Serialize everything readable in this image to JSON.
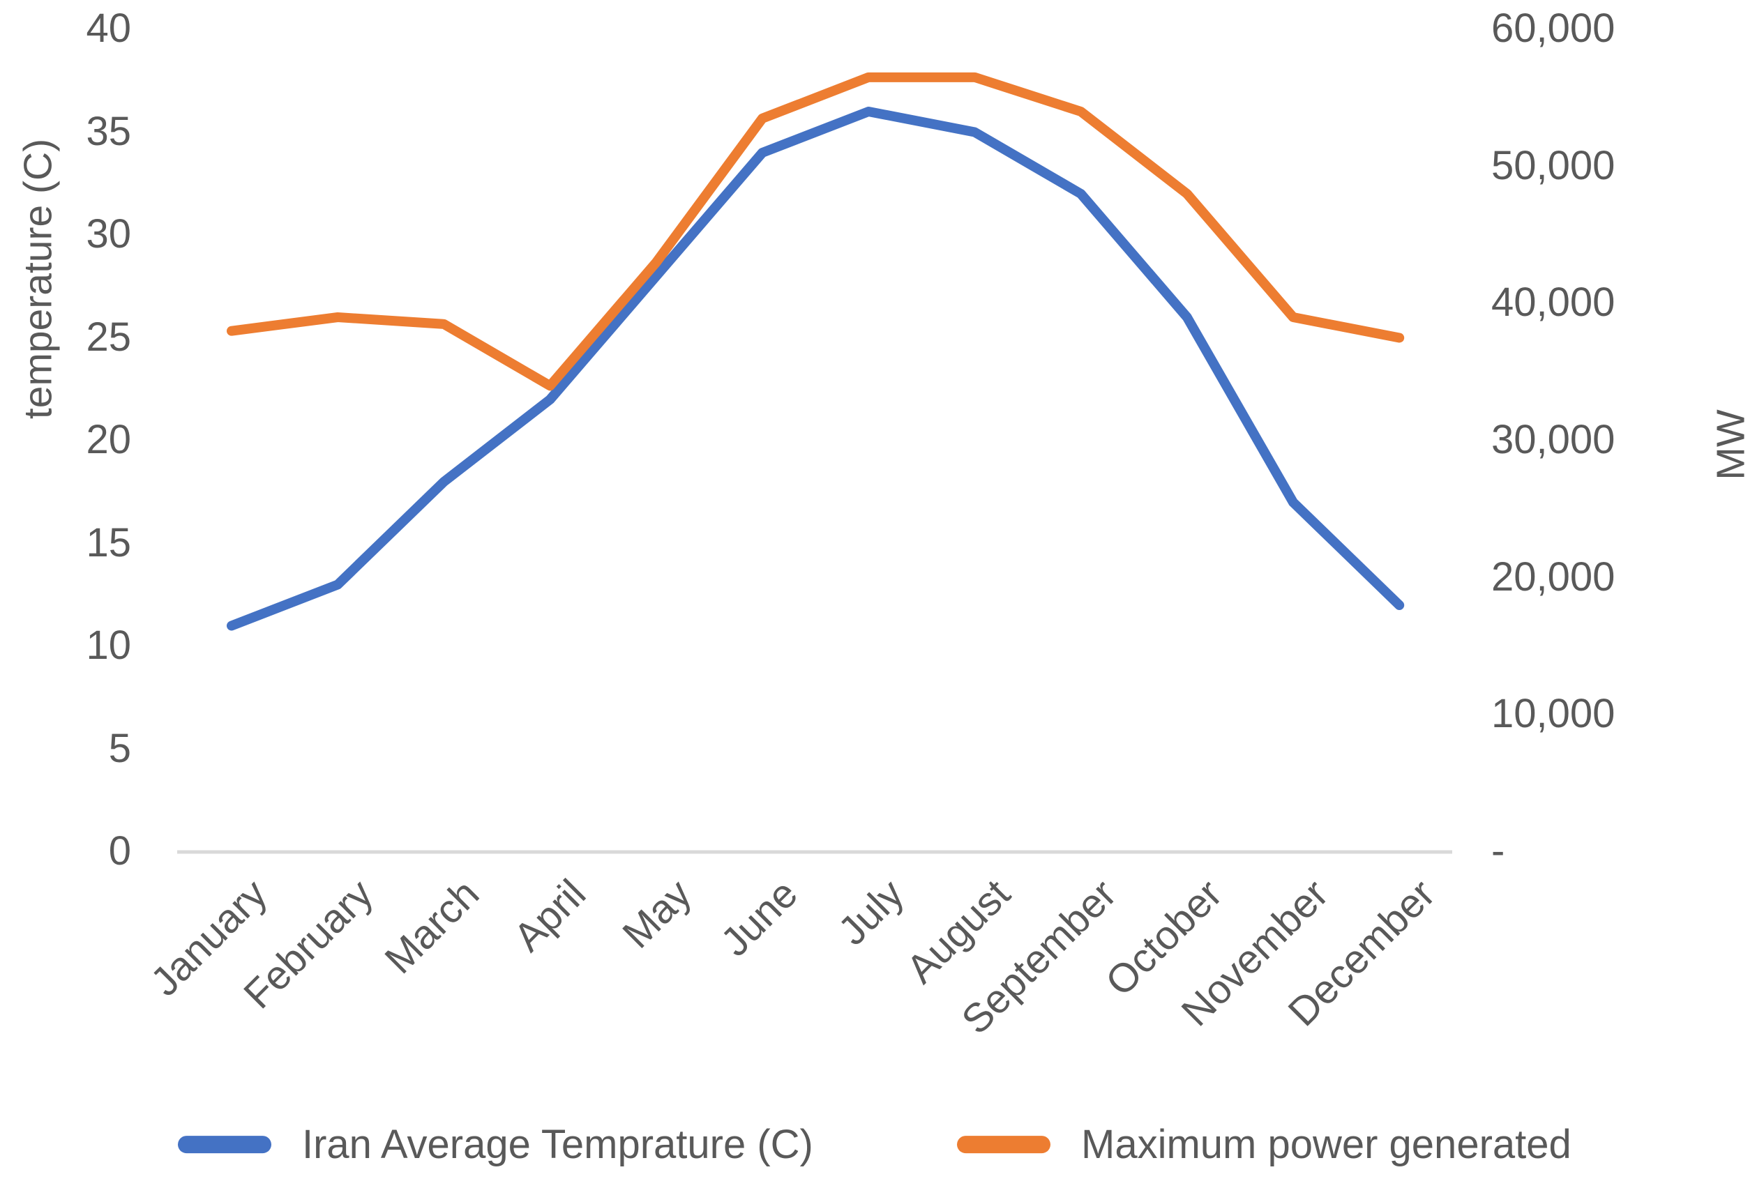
{
  "chart_data": {
    "type": "line",
    "title": "",
    "categories": [
      "January",
      "February",
      "March",
      "April",
      "May",
      "June",
      "July",
      "August",
      "September",
      "October",
      "November",
      "December"
    ],
    "series": [
      {
        "name": "Iran Average Temprature (C)",
        "color": "#4472C4",
        "axis": "left",
        "values": [
          11,
          13,
          18,
          22,
          28,
          34,
          36,
          35,
          32,
          26,
          17,
          12
        ]
      },
      {
        "name": "Maximum power generated",
        "color": "#ED7D31",
        "axis": "right",
        "values": [
          38000,
          39000,
          38500,
          34000,
          43000,
          53500,
          56500,
          56500,
          54000,
          48000,
          39000,
          37500
        ]
      }
    ],
    "left_axis": {
      "title": "temperature (C)",
      "min": 0,
      "max": 40,
      "step": 5,
      "tick_labels": [
        "0",
        "5",
        "10",
        "15",
        "20",
        "25",
        "30",
        "35",
        "40"
      ]
    },
    "right_axis": {
      "title": "MW",
      "min": 0,
      "max": 60000,
      "step": 10000,
      "tick_labels": [
        "-",
        "10,000",
        "20,000",
        "30,000",
        "40,000",
        "50,000",
        "60,000"
      ]
    },
    "legend_position": "bottom",
    "grid": false,
    "x_tick_rotation": -45
  },
  "styles": {
    "text_color": "#595959",
    "axis_line_color": "#D9D9D9",
    "background": "#FFFFFF",
    "line_width": 14
  }
}
